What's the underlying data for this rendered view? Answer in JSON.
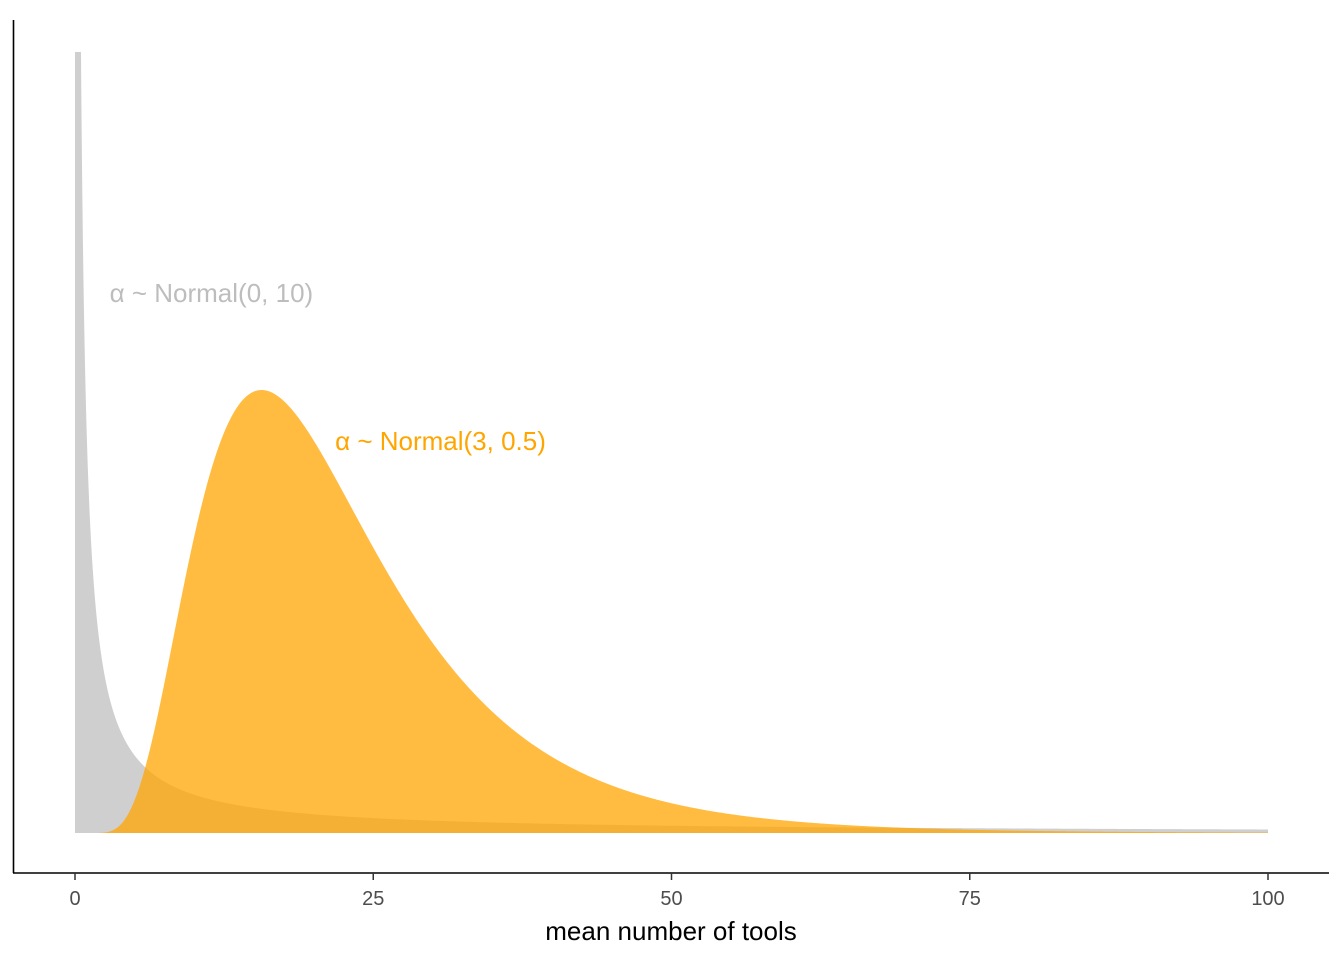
{
  "chart_data": {
    "type": "area",
    "xlabel": "mean number of tools",
    "ylabel": "",
    "xlim": [
      0,
      100
    ],
    "x_ticks": [
      {
        "value": 0,
        "label": "0"
      },
      {
        "value": 25,
        "label": "25"
      },
      {
        "value": 50,
        "label": "50"
      },
      {
        "value": 75,
        "label": "75"
      },
      {
        "value": 100,
        "label": "100"
      }
    ],
    "y_axis_labels": false,
    "grid": false,
    "series": [
      {
        "label": "α ~ Normal(0, 10)",
        "distribution": "lognormal",
        "meanlog": 0,
        "sdlog": 10,
        "color": "#bdbdbd",
        "opacity": 0.72
      },
      {
        "label": "α ~ Normal(3, 0.5)",
        "distribution": "lognormal",
        "meanlog": 3,
        "sdlog": 0.5,
        "color": "#ffa500",
        "opacity": 0.75
      }
    ],
    "annotations": [
      {
        "text": "α ~ Normal(0, 10)",
        "x": 2.9,
        "color": "#bdbdbd"
      },
      {
        "text": "α ~ Normal(3, 0.5)",
        "x": 21.8,
        "color": "#ffa500"
      }
    ]
  }
}
